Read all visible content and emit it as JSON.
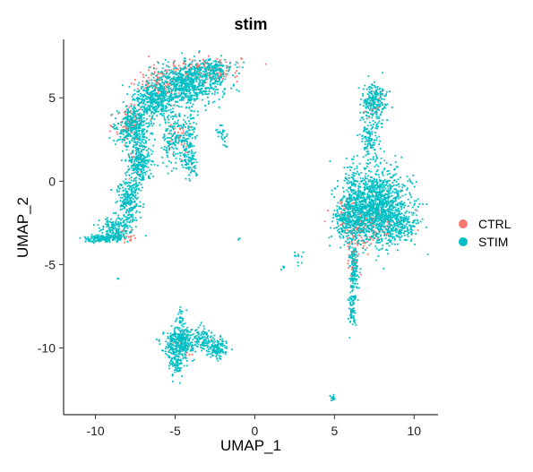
{
  "chart_data": {
    "type": "scatter",
    "title": "stim",
    "xlabel": "UMAP_1",
    "ylabel": "UMAP_2",
    "xlim": [
      -12,
      11.5
    ],
    "ylim": [
      -14,
      8.5
    ],
    "x_ticks": [
      -10,
      -5,
      0,
      5,
      10
    ],
    "y_ticks": [
      -10,
      -5,
      0,
      5
    ],
    "grid": false,
    "legend": {
      "placement": "right",
      "entries": [
        {
          "name": "CTRL",
          "color": "#F8766D"
        },
        {
          "name": "STIM",
          "color": "#00BFC4"
        }
      ]
    },
    "series": [
      {
        "name": "CTRL",
        "color": "#F8766D",
        "clusters": [
          {
            "cx": -3.5,
            "cy": 6.7,
            "sx": 1.3,
            "sy": 0.4,
            "n": 180
          },
          {
            "cx": -6.0,
            "cy": 5.8,
            "sx": 0.7,
            "sy": 0.5,
            "n": 100
          },
          {
            "cx": -7.8,
            "cy": 3.5,
            "sx": 0.5,
            "sy": 0.6,
            "n": 80
          },
          {
            "cx": -4.8,
            "cy": 3.0,
            "sx": 0.4,
            "sy": 0.8,
            "n": 40
          },
          {
            "cx": -7.4,
            "cy": 1.2,
            "sx": 0.3,
            "sy": 0.6,
            "n": 30
          },
          {
            "cx": 7.3,
            "cy": -2.4,
            "sx": 1.0,
            "sy": 0.6,
            "n": 150
          },
          {
            "cx": 6.0,
            "cy": -2.0,
            "sx": 0.5,
            "sy": 0.5,
            "n": 60
          },
          {
            "cx": 6.2,
            "cy": -5.0,
            "sx": 0.2,
            "sy": 0.5,
            "n": 30
          },
          {
            "cx": 7.5,
            "cy": 4.6,
            "sx": 0.4,
            "sy": 0.5,
            "n": 25
          },
          {
            "cx": 6.6,
            "cy": -3.5,
            "sx": 0.4,
            "sy": 0.4,
            "n": 40
          },
          {
            "cx": -8.0,
            "cy": -3.3,
            "sx": 0.3,
            "sy": 0.2,
            "n": 20
          },
          {
            "cx": -4.5,
            "cy": -10.0,
            "sx": 0.5,
            "sy": 0.4,
            "n": 15
          }
        ]
      },
      {
        "name": "STIM",
        "color": "#00BFC4",
        "clusters": [
          {
            "cx": -4.2,
            "cy": 5.8,
            "sx": 1.1,
            "sy": 0.6,
            "n": 700
          },
          {
            "cx": -2.6,
            "cy": 6.7,
            "sx": 0.6,
            "sy": 0.3,
            "n": 150
          },
          {
            "cx": -6.4,
            "cy": 4.8,
            "sx": 0.7,
            "sy": 0.6,
            "n": 350
          },
          {
            "cx": -7.6,
            "cy": 3.2,
            "sx": 0.5,
            "sy": 0.6,
            "n": 350
          },
          {
            "cx": -7.2,
            "cy": 1.2,
            "sx": 0.35,
            "sy": 0.6,
            "n": 250
          },
          {
            "cx": -7.9,
            "cy": -1.0,
            "sx": 0.35,
            "sy": 0.8,
            "n": 250
          },
          {
            "cx": -8.7,
            "cy": -2.8,
            "sx": 0.5,
            "sy": 0.35,
            "n": 150
          },
          {
            "cx": -10.0,
            "cy": -3.45,
            "sx": 0.35,
            "sy": 0.12,
            "n": 80
          },
          {
            "cx": -9.0,
            "cy": -3.4,
            "sx": 0.4,
            "sy": 0.12,
            "n": 80
          },
          {
            "cx": -5.2,
            "cy": 2.7,
            "sx": 0.3,
            "sy": 0.8,
            "n": 130
          },
          {
            "cx": -4.2,
            "cy": 2.5,
            "sx": 0.3,
            "sy": 0.8,
            "n": 130
          },
          {
            "cx": -4.0,
            "cy": 1.0,
            "sx": 0.25,
            "sy": 0.4,
            "n": 60
          },
          {
            "cx": -2.0,
            "cy": 2.8,
            "sx": 0.2,
            "sy": 0.3,
            "n": 30
          },
          {
            "cx": 7.7,
            "cy": -1.5,
            "sx": 1.0,
            "sy": 1.1,
            "n": 1300
          },
          {
            "cx": 6.0,
            "cy": -2.2,
            "sx": 0.5,
            "sy": 0.7,
            "n": 300
          },
          {
            "cx": 9.0,
            "cy": -2.6,
            "sx": 0.6,
            "sy": 0.4,
            "n": 150
          },
          {
            "cx": 7.5,
            "cy": 4.8,
            "sx": 0.4,
            "sy": 0.55,
            "n": 220
          },
          {
            "cx": 7.2,
            "cy": 2.6,
            "sx": 0.3,
            "sy": 0.7,
            "n": 120
          },
          {
            "cx": 6.2,
            "cy": -5.5,
            "sx": 0.15,
            "sy": 0.9,
            "n": 140
          },
          {
            "cx": 6.1,
            "cy": -7.8,
            "sx": 0.12,
            "sy": 0.5,
            "n": 60
          },
          {
            "cx": 6.0,
            "cy": -0.5,
            "sx": 0.2,
            "sy": 0.8,
            "n": 60
          },
          {
            "cx": -4.7,
            "cy": -9.6,
            "sx": 0.5,
            "sy": 0.4,
            "n": 300
          },
          {
            "cx": -2.4,
            "cy": -10.0,
            "sx": 0.35,
            "sy": 0.3,
            "n": 150
          },
          {
            "cx": -5.0,
            "cy": -10.8,
            "sx": 0.3,
            "sy": 0.5,
            "n": 120
          },
          {
            "cx": -3.3,
            "cy": -9.4,
            "sx": 0.3,
            "sy": 0.3,
            "n": 80
          },
          {
            "cx": -4.6,
            "cy": -8.3,
            "sx": 0.15,
            "sy": 0.4,
            "n": 30
          },
          {
            "cx": 4.9,
            "cy": -13.0,
            "sx": 0.1,
            "sy": 0.1,
            "n": 12
          },
          {
            "cx": 2.9,
            "cy": -4.6,
            "sx": 0.3,
            "sy": 0.2,
            "n": 10
          },
          {
            "cx": 1.8,
            "cy": -5.2,
            "sx": 0.06,
            "sy": 0.06,
            "n": 4
          },
          {
            "cx": -1.0,
            "cy": -3.5,
            "sx": 0.05,
            "sy": 0.05,
            "n": 3
          },
          {
            "cx": -8.6,
            "cy": -5.9,
            "sx": 0.05,
            "sy": 0.05,
            "n": 2
          }
        ]
      }
    ]
  }
}
